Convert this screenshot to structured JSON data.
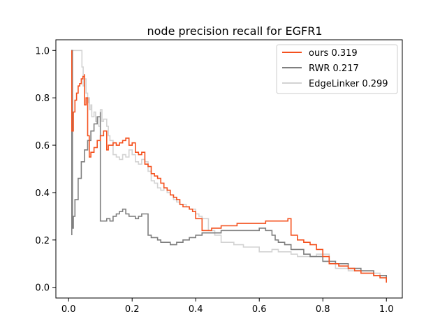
{
  "chart_data": {
    "type": "line",
    "title": "node precision recall for EGFR1",
    "xlabel": "",
    "ylabel": "",
    "xlim": [
      -0.04,
      1.05
    ],
    "ylim": [
      -0.045,
      1.045
    ],
    "xticks": [
      0.0,
      0.2,
      0.4,
      0.6,
      0.8,
      1.0
    ],
    "xtick_labels": [
      "0.0",
      "0.2",
      "0.4",
      "0.6",
      "0.8",
      "1.0"
    ],
    "yticks": [
      0.0,
      0.2,
      0.4,
      0.6,
      0.8,
      1.0
    ],
    "ytick_labels": [
      "0.0",
      "0.2",
      "0.4",
      "0.6",
      "0.8",
      "1.0"
    ],
    "grid": false,
    "legend_position": "top-right",
    "series": [
      {
        "name": "EdgeLinker 0.299",
        "color": "#d3d3d3",
        "x": [
          0.01,
          0.01,
          0.04,
          0.042,
          0.046,
          0.05,
          0.055,
          0.06,
          0.063,
          0.066,
          0.07,
          0.073,
          0.08,
          0.085,
          0.09,
          0.095,
          0.1,
          0.105,
          0.11,
          0.12,
          0.125,
          0.13,
          0.14,
          0.15,
          0.16,
          0.17,
          0.18,
          0.19,
          0.2,
          0.21,
          0.22,
          0.23,
          0.24,
          0.25,
          0.26,
          0.27,
          0.28,
          0.29,
          0.3,
          0.31,
          0.32,
          0.33,
          0.34,
          0.35,
          0.36,
          0.37,
          0.38,
          0.39,
          0.4,
          0.41,
          0.42,
          0.44,
          0.46,
          0.48,
          0.5,
          0.52,
          0.55,
          0.58,
          0.6,
          0.62,
          0.64,
          0.66,
          0.68,
          0.7,
          0.72,
          0.74,
          0.76,
          0.78,
          0.8,
          0.82,
          0.84,
          0.86,
          0.88,
          0.9,
          0.92,
          0.94,
          0.96,
          0.98,
          1.0
        ],
        "y": [
          0.67,
          1.0,
          1.0,
          0.93,
          0.85,
          0.88,
          0.82,
          0.78,
          0.8,
          0.75,
          0.77,
          0.72,
          0.74,
          0.7,
          0.72,
          0.68,
          0.75,
          0.7,
          0.71,
          0.68,
          0.64,
          0.62,
          0.56,
          0.55,
          0.54,
          0.56,
          0.55,
          0.58,
          0.56,
          0.53,
          0.52,
          0.54,
          0.53,
          0.49,
          0.45,
          0.44,
          0.42,
          0.41,
          0.42,
          0.4,
          0.39,
          0.37,
          0.36,
          0.35,
          0.35,
          0.34,
          0.33,
          0.33,
          0.31,
          0.3,
          0.29,
          0.24,
          0.22,
          0.19,
          0.19,
          0.18,
          0.17,
          0.17,
          0.15,
          0.15,
          0.16,
          0.15,
          0.15,
          0.14,
          0.13,
          0.13,
          0.13,
          0.14,
          0.14,
          0.1,
          0.08,
          0.08,
          0.07,
          0.07,
          0.07,
          0.07,
          0.06,
          0.04,
          0.03
        ]
      },
      {
        "name": "RWR 0.217",
        "color": "#7f7f7f",
        "x": [
          0.01,
          0.01,
          0.012,
          0.015,
          0.02,
          0.03,
          0.04,
          0.05,
          0.06,
          0.07,
          0.08,
          0.09,
          0.1,
          0.1,
          0.11,
          0.12,
          0.13,
          0.14,
          0.15,
          0.16,
          0.17,
          0.18,
          0.19,
          0.2,
          0.21,
          0.22,
          0.23,
          0.24,
          0.25,
          0.26,
          0.27,
          0.28,
          0.29,
          0.3,
          0.32,
          0.34,
          0.36,
          0.38,
          0.4,
          0.42,
          0.45,
          0.48,
          0.5,
          0.52,
          0.55,
          0.58,
          0.6,
          0.62,
          0.64,
          0.65,
          0.66,
          0.68,
          0.7,
          0.72,
          0.74,
          0.76,
          0.8,
          0.84,
          0.88,
          0.92,
          0.96,
          1.0
        ],
        "y": [
          0.22,
          1.0,
          0.25,
          0.3,
          0.37,
          0.46,
          0.53,
          0.58,
          0.62,
          0.66,
          0.69,
          0.72,
          0.74,
          0.28,
          0.28,
          0.29,
          0.28,
          0.3,
          0.31,
          0.32,
          0.33,
          0.31,
          0.3,
          0.3,
          0.29,
          0.3,
          0.31,
          0.31,
          0.22,
          0.21,
          0.21,
          0.2,
          0.19,
          0.19,
          0.18,
          0.19,
          0.2,
          0.21,
          0.22,
          0.23,
          0.23,
          0.24,
          0.24,
          0.24,
          0.24,
          0.24,
          0.25,
          0.24,
          0.22,
          0.2,
          0.19,
          0.18,
          0.16,
          0.16,
          0.14,
          0.13,
          0.11,
          0.1,
          0.08,
          0.07,
          0.05,
          0.03
        ]
      },
      {
        "name": "ours 0.319",
        "color": "#f4511e",
        "x": [
          0.01,
          0.01,
          0.015,
          0.02,
          0.025,
          0.03,
          0.035,
          0.04,
          0.045,
          0.05,
          0.05,
          0.055,
          0.06,
          0.06,
          0.065,
          0.07,
          0.08,
          0.09,
          0.1,
          0.11,
          0.12,
          0.125,
          0.13,
          0.14,
          0.15,
          0.16,
          0.17,
          0.18,
          0.19,
          0.2,
          0.21,
          0.22,
          0.23,
          0.24,
          0.25,
          0.26,
          0.27,
          0.28,
          0.29,
          0.3,
          0.31,
          0.32,
          0.33,
          0.34,
          0.35,
          0.36,
          0.37,
          0.38,
          0.39,
          0.4,
          0.42,
          0.45,
          0.48,
          0.5,
          0.53,
          0.56,
          0.6,
          0.62,
          0.64,
          0.66,
          0.68,
          0.69,
          0.7,
          0.72,
          0.74,
          0.76,
          0.78,
          0.8,
          0.82,
          0.85,
          0.88,
          0.9,
          0.92,
          0.94,
          0.96,
          0.98,
          1.0
        ],
        "y": [
          1.0,
          0.66,
          0.74,
          0.79,
          0.82,
          0.85,
          0.86,
          0.88,
          0.89,
          0.9,
          0.77,
          0.8,
          0.75,
          0.64,
          0.55,
          0.57,
          0.59,
          0.62,
          0.64,
          0.66,
          0.58,
          0.6,
          0.6,
          0.61,
          0.6,
          0.61,
          0.62,
          0.63,
          0.6,
          0.61,
          0.57,
          0.56,
          0.57,
          0.52,
          0.51,
          0.48,
          0.47,
          0.46,
          0.44,
          0.42,
          0.41,
          0.39,
          0.38,
          0.37,
          0.35,
          0.34,
          0.34,
          0.33,
          0.32,
          0.29,
          0.24,
          0.25,
          0.26,
          0.26,
          0.27,
          0.27,
          0.27,
          0.28,
          0.28,
          0.28,
          0.28,
          0.29,
          0.22,
          0.2,
          0.19,
          0.18,
          0.16,
          0.13,
          0.1,
          0.09,
          0.08,
          0.07,
          0.06,
          0.06,
          0.05,
          0.04,
          0.02
        ]
      }
    ]
  },
  "legend": {
    "items": [
      {
        "label": "ours 0.319",
        "color": "#f4511e"
      },
      {
        "label": "RWR 0.217",
        "color": "#7f7f7f"
      },
      {
        "label": "EdgeLinker 0.299",
        "color": "#d3d3d3"
      }
    ]
  }
}
